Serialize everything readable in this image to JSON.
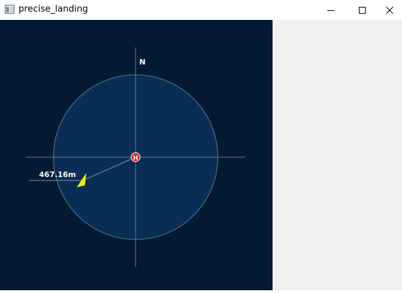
{
  "window": {
    "title": "precise_landing",
    "icon": "app-window-icon",
    "controls": [
      "minimize-icon",
      "maximize-icon",
      "close-icon"
    ]
  },
  "map": {
    "north_label": "N",
    "helipad_label": "H",
    "distance_label": "467.16m",
    "colors": {
      "background": "#041a33",
      "range_circle": "#0a2d55",
      "helipad": "#d2232a",
      "drone_marker": "#f2ef00"
    }
  }
}
